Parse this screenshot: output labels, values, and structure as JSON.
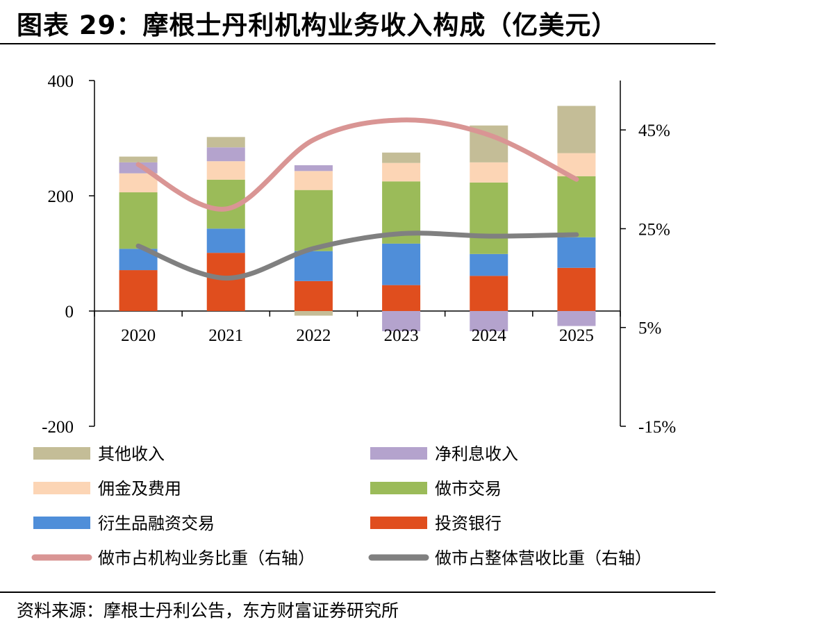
{
  "title": "图表 29：摩根士丹利机构业务收入构成（亿美元）",
  "source": "资料来源：摩根士丹利公告，东方财富证券研究所",
  "chart_data": {
    "type": "bar",
    "stacked": true,
    "categories": [
      "2020",
      "2021",
      "2022",
      "2023",
      "2024",
      "2025"
    ],
    "left_axis": {
      "ylim": [
        -200,
        400
      ],
      "ticks": [
        -200,
        0,
        200,
        400
      ]
    },
    "right_axis": {
      "ylim": [
        -15,
        55
      ],
      "ticks": [
        -15,
        5,
        25,
        45
      ],
      "tick_labels": [
        "-15%",
        "5%",
        "25%",
        "45%"
      ]
    },
    "series": [
      {
        "name": "投资银行",
        "kind": "bar",
        "color": "#E04E1E",
        "values": [
          71,
          101,
          52,
          45,
          61,
          75
        ]
      },
      {
        "name": "衍生品融资交易",
        "kind": "bar",
        "color": "#4F8ED9",
        "values": [
          37,
          42,
          52,
          72,
          38,
          53
        ]
      },
      {
        "name": "做市交易",
        "kind": "bar",
        "color": "#9BBB59",
        "values": [
          98,
          85,
          106,
          108,
          124,
          106
        ]
      },
      {
        "name": "佣金及费用",
        "kind": "bar",
        "color": "#FCD5B5",
        "values": [
          33,
          32,
          33,
          32,
          35,
          40
        ]
      },
      {
        "name": "净利息收入",
        "kind": "bar",
        "color": "#B4A3CD",
        "values": [
          19,
          24,
          10,
          -35,
          -35,
          -26
        ]
      },
      {
        "name": "其他收入",
        "kind": "bar",
        "color": "#C4BD97",
        "values": [
          10,
          18,
          -8,
          18,
          64,
          82
        ]
      },
      {
        "name": "做市占机构业务比重（右轴）",
        "kind": "line",
        "axis": "right",
        "color": "#D99594",
        "values": [
          0.38,
          0.29,
          0.43,
          0.47,
          0.44,
          0.35
        ]
      },
      {
        "name": "做市占整体营收比重（右轴）",
        "kind": "line",
        "axis": "right",
        "color": "#808080",
        "values": [
          0.215,
          0.15,
          0.21,
          0.24,
          0.235,
          0.238
        ]
      }
    ],
    "legend_position": "bottom",
    "grid": false
  }
}
